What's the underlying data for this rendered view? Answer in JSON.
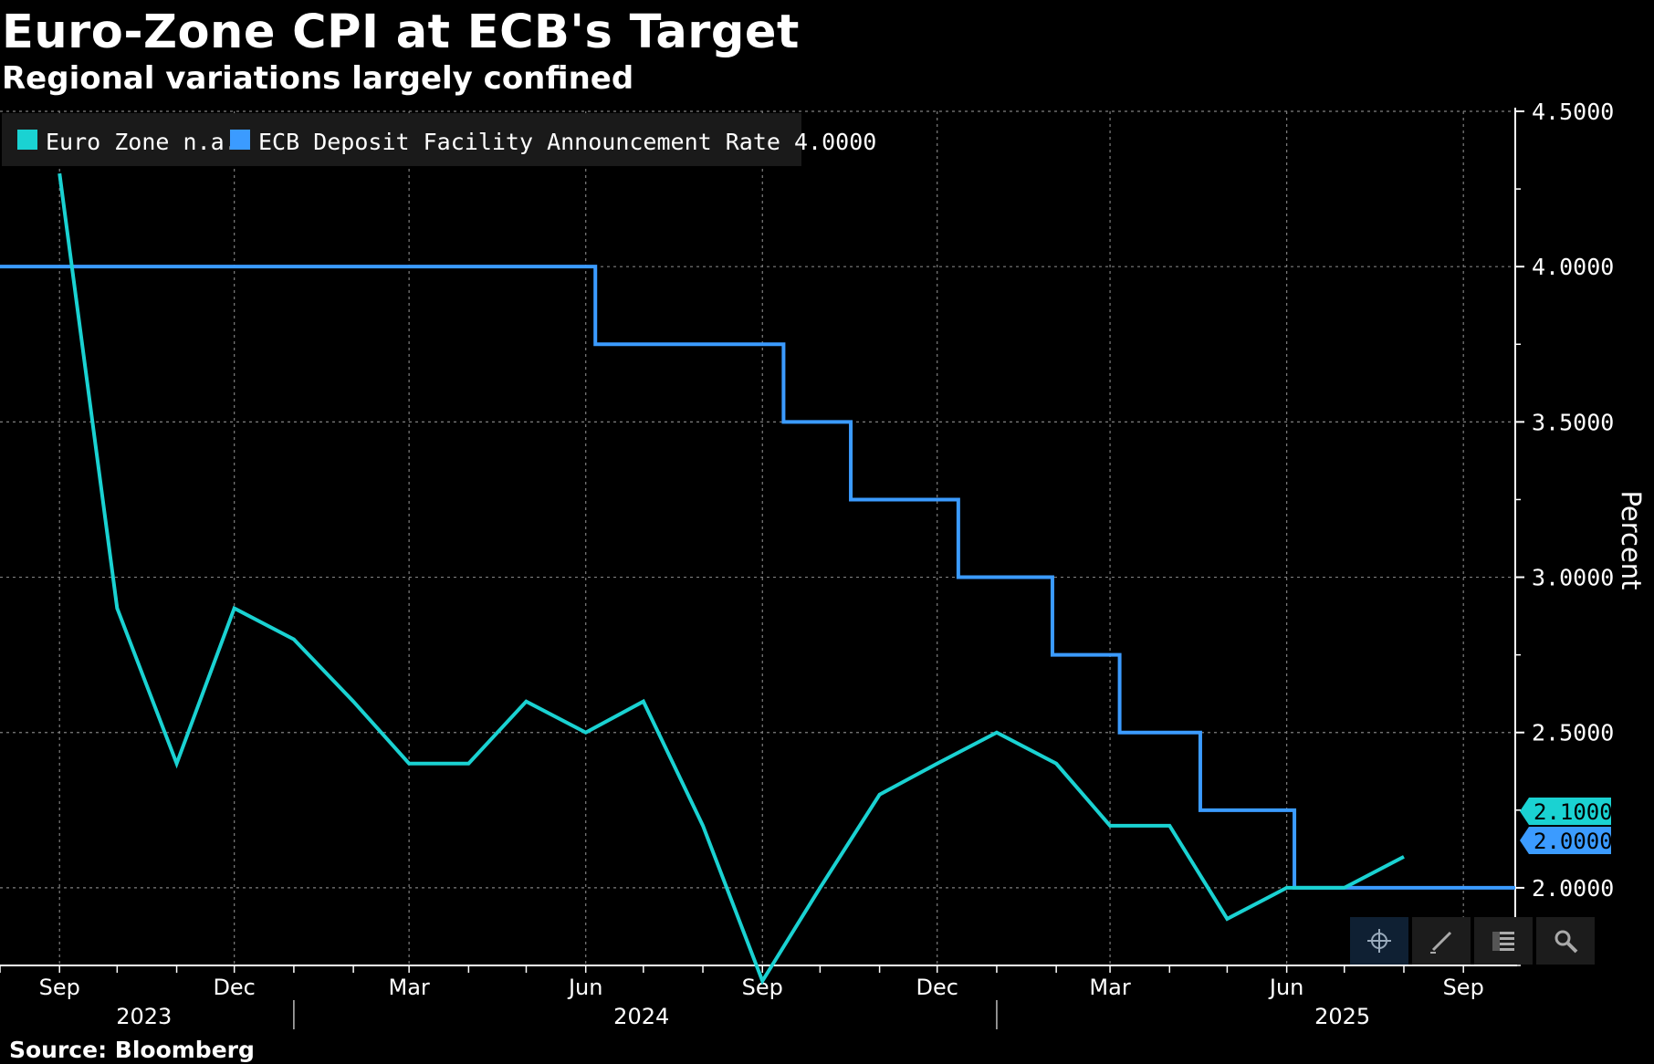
{
  "title": "Euro-Zone CPI at ECB's Target",
  "subtitle": "Regional variations largely confined",
  "source": "Source: Bloomberg",
  "colors": {
    "cpi": "#1ad2d2",
    "ecb": "#3b9bff",
    "grid": "#7f7f7f",
    "background": "#000000"
  },
  "toolbar": [
    "crosshair-icon",
    "pencil-icon",
    "legend-icon",
    "magnifier-icon"
  ],
  "chart_data": {
    "type": "line",
    "title": "Euro-Zone CPI at ECB's Target",
    "subtitle": "Regional variations largely confined",
    "ylabel": "Percent",
    "ylim": [
      1.75,
      4.5
    ],
    "y_ticks": [
      4.5,
      4.0,
      3.5,
      3.0,
      2.5,
      2.0
    ],
    "y_tick_labels": [
      "4.5000",
      "4.0000",
      "3.5000",
      "3.0000",
      "2.5000",
      "2.0000"
    ],
    "x_range": [
      "2023-08-01",
      "2025-09-28"
    ],
    "x_tick_labels": [
      {
        "date": "2023-09-01",
        "label": "Sep"
      },
      {
        "date": "2023-12-01",
        "label": "Dec"
      },
      {
        "date": "2024-03-01",
        "label": "Mar"
      },
      {
        "date": "2024-06-01",
        "label": "Jun"
      },
      {
        "date": "2024-09-01",
        "label": "Sep"
      },
      {
        "date": "2024-12-01",
        "label": "Dec"
      },
      {
        "date": "2025-03-01",
        "label": "Mar"
      },
      {
        "date": "2025-06-01",
        "label": "Jun"
      },
      {
        "date": "2025-09-01",
        "label": "Sep"
      }
    ],
    "years": [
      {
        "label": "2023",
        "date": "2023-10-15"
      },
      {
        "label": "2024",
        "date": "2024-06-30"
      },
      {
        "label": "2025",
        "date": "2025-06-30"
      }
    ],
    "year_dividers": [
      "2024-01-01",
      "2025-01-01"
    ],
    "series": [
      {
        "name": "ECB Deposit Facility Announcement Rate",
        "legend_label": "ECB Deposit Facility Announcement Rate 4.0000",
        "last_value_label": "2.0000",
        "step": true,
        "points": [
          {
            "date": "2023-08-01",
            "value": 4.0
          },
          {
            "date": "2024-06-06",
            "value": 3.75
          },
          {
            "date": "2024-09-12",
            "value": 3.5
          },
          {
            "date": "2024-10-17",
            "value": 3.25
          },
          {
            "date": "2024-12-12",
            "value": 3.0
          },
          {
            "date": "2025-01-30",
            "value": 2.75
          },
          {
            "date": "2025-03-06",
            "value": 2.5
          },
          {
            "date": "2025-04-17",
            "value": 2.25
          },
          {
            "date": "2025-06-05",
            "value": 2.0
          },
          {
            "date": "2025-09-28",
            "value": 2.0
          }
        ]
      },
      {
        "name": "Euro Zone",
        "legend_label": "Euro Zone n.a.",
        "last_value_label": "2.1000",
        "step": false,
        "points": [
          {
            "date": "2023-09-01",
            "value": 4.3
          },
          {
            "date": "2023-10-01",
            "value": 2.9
          },
          {
            "date": "2023-11-01",
            "value": 2.4
          },
          {
            "date": "2023-12-01",
            "value": 2.9
          },
          {
            "date": "2024-01-01",
            "value": 2.8
          },
          {
            "date": "2024-02-01",
            "value": 2.6
          },
          {
            "date": "2024-03-01",
            "value": 2.4
          },
          {
            "date": "2024-04-01",
            "value": 2.4
          },
          {
            "date": "2024-05-01",
            "value": 2.6
          },
          {
            "date": "2024-06-01",
            "value": 2.5
          },
          {
            "date": "2024-07-01",
            "value": 2.6
          },
          {
            "date": "2024-08-01",
            "value": 2.2
          },
          {
            "date": "2024-09-01",
            "value": 1.7
          },
          {
            "date": "2024-10-01",
            "value": 2.0
          },
          {
            "date": "2024-11-01",
            "value": 2.3
          },
          {
            "date": "2024-12-01",
            "value": 2.4
          },
          {
            "date": "2025-01-01",
            "value": 2.5
          },
          {
            "date": "2025-02-01",
            "value": 2.4
          },
          {
            "date": "2025-03-01",
            "value": 2.2
          },
          {
            "date": "2025-04-01",
            "value": 2.2
          },
          {
            "date": "2025-05-01",
            "value": 1.9
          },
          {
            "date": "2025-06-01",
            "value": 2.0
          },
          {
            "date": "2025-07-01",
            "value": 2.0
          },
          {
            "date": "2025-08-01",
            "value": 2.1
          }
        ]
      }
    ]
  }
}
